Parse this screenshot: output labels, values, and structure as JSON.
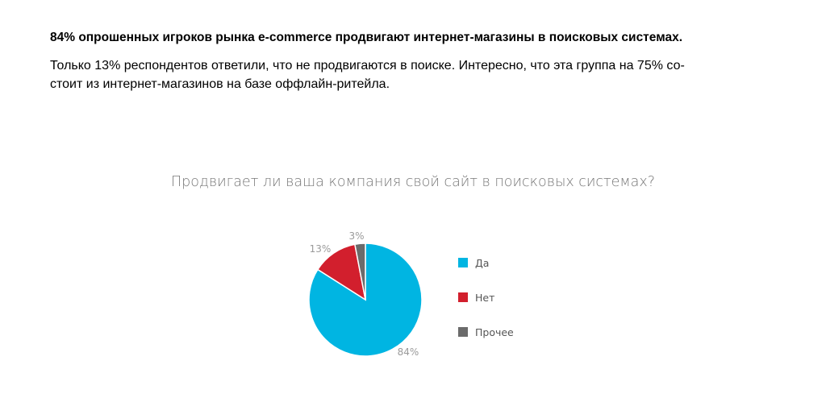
{
  "text": {
    "heading": "84% опрошенных игроков рынка e-commerce продвигают интернет-магазины в поисковых системах.",
    "paragraph_line1": "Только 13% респондентов ответили, что не продвигаются в поиске. Интересно, что эта группа на 75% со-",
    "paragraph_line2": "стоит из интернет-магазинов на базе оффлайн-ритейла."
  },
  "chart_data": {
    "type": "pie",
    "title": "Продвигает ли ваша компания свой сайт в поисковых системах?",
    "categories": [
      "Да",
      "Нет",
      "Прочее"
    ],
    "values": [
      84,
      13,
      3
    ],
    "value_labels": [
      "84%",
      "13%",
      "3%"
    ],
    "colors": [
      "#00b5e2",
      "#d21f2d",
      "#6b6b6b"
    ],
    "legend": "right"
  }
}
